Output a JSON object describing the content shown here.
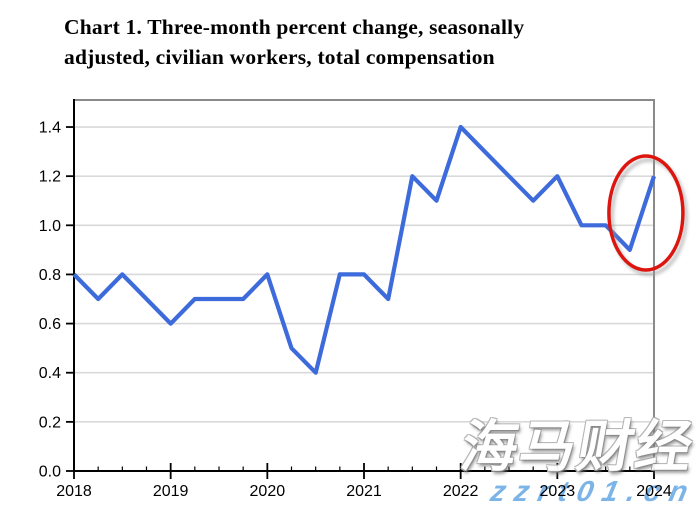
{
  "header": {
    "title_line1": "Chart 1. Three-month percent change, seasonally",
    "title_line2": "adjusted, civilian workers, total compensation"
  },
  "watermark": {
    "brand_text": "海马财经",
    "site_text": "zzrt01.cn",
    "site_color": "#7cb4e8"
  },
  "chart_data": {
    "type": "line",
    "title": "Chart 1. Three-month percent change, seasonally adjusted, civilian workers, total compensation",
    "categories": [
      "2018 Q1",
      "2018 Q2",
      "2018 Q3",
      "2018 Q4",
      "2019 Q1",
      "2019 Q2",
      "2019 Q3",
      "2019 Q4",
      "2020 Q1",
      "2020 Q2",
      "2020 Q3",
      "2020 Q4",
      "2021 Q1",
      "2021 Q2",
      "2021 Q3",
      "2021 Q4",
      "2022 Q1",
      "2022 Q2",
      "2022 Q3",
      "2022 Q4",
      "2023 Q1",
      "2023 Q2",
      "2023 Q3",
      "2023 Q4",
      "2024 Q1"
    ],
    "series": [
      {
        "name": "Total compensation, three-month percent change",
        "color": "#3e6bdb",
        "values": [
          0.8,
          0.7,
          0.8,
          0.7,
          0.6,
          0.7,
          0.7,
          0.7,
          0.8,
          0.5,
          0.4,
          0.8,
          0.8,
          0.7,
          1.2,
          1.1,
          1.4,
          1.3,
          1.2,
          1.1,
          1.2,
          1.0,
          1.0,
          0.9,
          1.2
        ]
      }
    ],
    "xlabel": "",
    "ylabel": "",
    "x_tick_labels": [
      "2018",
      "2019",
      "2020",
      "2021",
      "2022",
      "2023",
      "2024"
    ],
    "y_ticks": [
      0.0,
      0.2,
      0.4,
      0.6,
      0.8,
      1.0,
      1.2,
      1.4
    ],
    "ylim": [
      0,
      1.51
    ],
    "grid": "horizontal",
    "legend": "none",
    "annotation": {
      "shape": "ellipse",
      "color": "#dd150f",
      "highlights": "final uptick from 0.9 (2023 Q4) to 1.2 (2024 Q1)"
    }
  }
}
